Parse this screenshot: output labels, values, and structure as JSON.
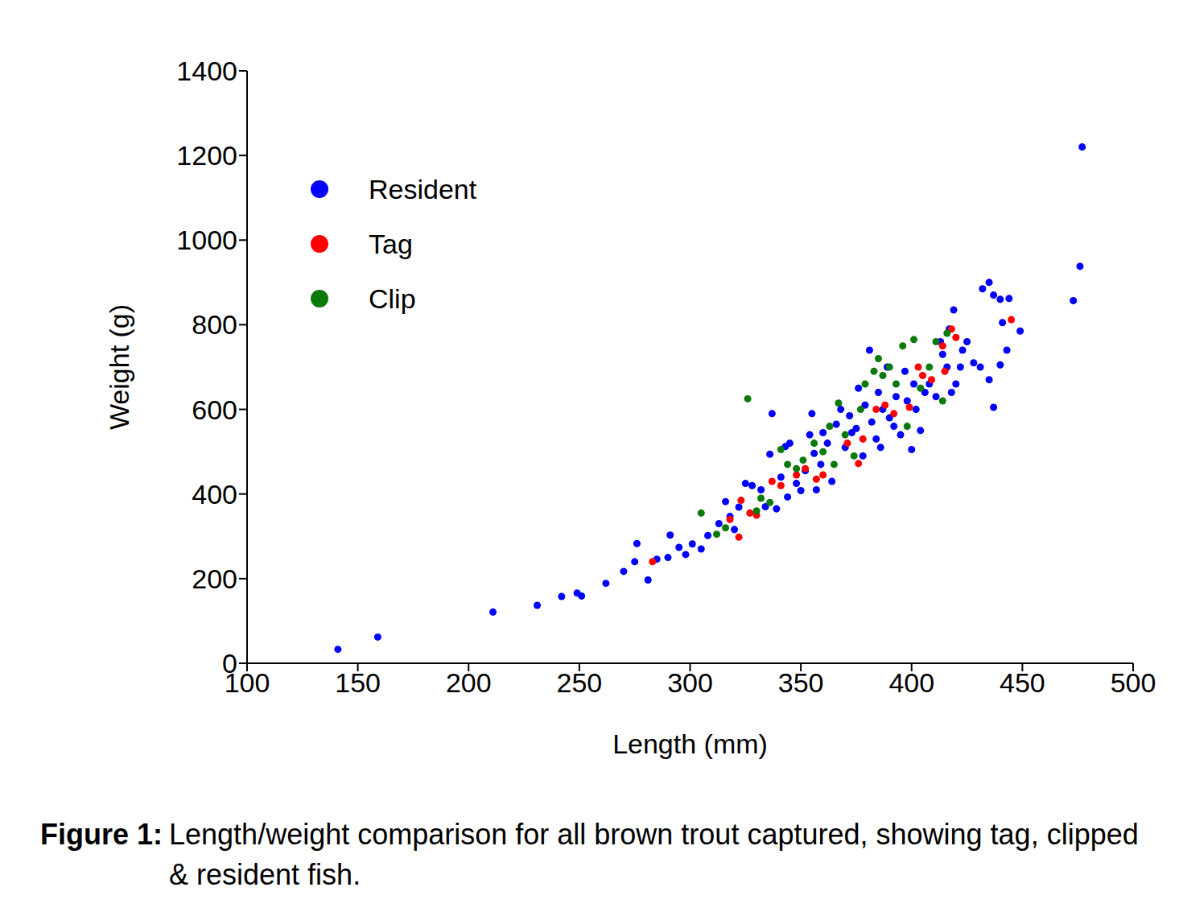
{
  "chart_data": {
    "type": "scatter",
    "caption_label": "Figure 1:",
    "caption": "Length/weight comparison for all brown trout captured, showing tag, clipped & resident fish.",
    "x_label": "Length (mm)",
    "y_label": "Weight (g)",
    "xlim": [
      100,
      500
    ],
    "xticks": [
      100,
      150,
      200,
      250,
      300,
      350,
      400,
      450,
      500
    ],
    "ylim": [
      0,
      1400
    ],
    "yticks": [
      0,
      200,
      400,
      600,
      800,
      1000,
      1200,
      1400
    ],
    "grid": false,
    "legend": "upper left",
    "marker": "circle",
    "series": [
      {
        "name": "Resident",
        "color": "#0000ff",
        "x": [
          141,
          159,
          211,
          231,
          242,
          249,
          251,
          262,
          270,
          275,
          276,
          281,
          285,
          290,
          291,
          295,
          298,
          301,
          305,
          308,
          313,
          316,
          318,
          320,
          322,
          325,
          328,
          332,
          334,
          336,
          337,
          339,
          341,
          343,
          344,
          345,
          348,
          350,
          352,
          354,
          355,
          356,
          357,
          359,
          360,
          362,
          364,
          366,
          368,
          370,
          372,
          373,
          375,
          376,
          378,
          379,
          381,
          382,
          384,
          385,
          386,
          387,
          389,
          390,
          392,
          393,
          395,
          397,
          398,
          400,
          401,
          402,
          404,
          406,
          408,
          411,
          413,
          414,
          416,
          417,
          418,
          419,
          420,
          422,
          423,
          425,
          428,
          431,
          432,
          435,
          435,
          437,
          437,
          440,
          440,
          441,
          443,
          444,
          449,
          473,
          476,
          477
        ],
        "values": [
          33,
          62,
          121,
          137,
          158,
          166,
          159,
          189,
          217,
          240,
          283,
          197,
          246,
          250,
          303,
          274,
          257,
          282,
          270,
          302,
          330,
          382,
          347,
          316,
          369,
          425,
          420,
          410,
          370,
          494,
          590,
          365,
          440,
          512,
          393,
          520,
          425,
          408,
          455,
          540,
          590,
          496,
          410,
          470,
          545,
          520,
          430,
          565,
          600,
          510,
          585,
          545,
          555,
          650,
          490,
          610,
          740,
          570,
          530,
          640,
          510,
          600,
          700,
          580,
          560,
          630,
          540,
          690,
          620,
          505,
          660,
          600,
          550,
          640,
          660,
          630,
          760,
          730,
          700,
          790,
          640,
          835,
          660,
          700,
          740,
          760,
          710,
          700,
          885,
          900,
          670,
          605,
          870,
          860,
          705,
          805,
          740,
          862,
          785,
          857,
          938,
          1220
        ]
      },
      {
        "name": "Tag",
        "color": "#ff0000",
        "x": [
          283,
          318,
          322,
          323,
          327,
          330,
          337,
          341,
          348,
          352,
          357,
          360,
          371,
          376,
          378,
          384,
          388,
          392,
          399,
          403,
          405,
          409,
          414,
          415,
          418,
          420,
          445
        ],
        "values": [
          240,
          340,
          298,
          385,
          355,
          350,
          430,
          420,
          445,
          460,
          435,
          445,
          520,
          472,
          530,
          600,
          610,
          590,
          605,
          700,
          680,
          670,
          750,
          690,
          790,
          770,
          812
        ]
      },
      {
        "name": "Clip",
        "color": "#0a7a0a",
        "x": [
          305,
          312,
          316,
          326,
          330,
          332,
          336,
          341,
          344,
          348,
          351,
          356,
          360,
          363,
          365,
          367,
          370,
          374,
          377,
          379,
          383,
          385,
          387,
          390,
          393,
          396,
          398,
          401,
          404,
          408,
          411,
          414,
          416
        ],
        "values": [
          355,
          305,
          320,
          625,
          360,
          390,
          380,
          505,
          470,
          460,
          480,
          520,
          500,
          560,
          470,
          615,
          540,
          490,
          600,
          660,
          690,
          720,
          680,
          700,
          660,
          750,
          560,
          765,
          650,
          700,
          760,
          620,
          780
        ]
      }
    ]
  }
}
